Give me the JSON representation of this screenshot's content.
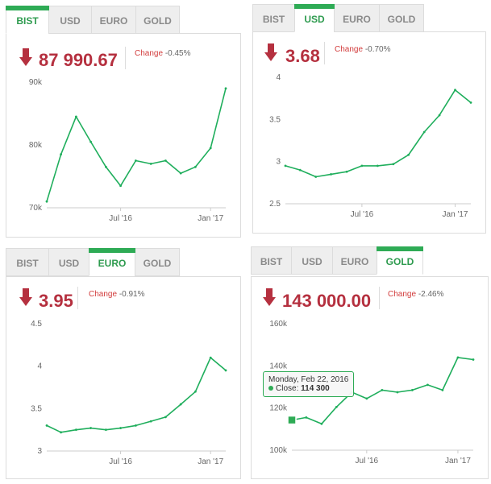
{
  "tabs": [
    "BIST",
    "USD",
    "EURO",
    "GOLD"
  ],
  "colors": {
    "accent": "#2eab55",
    "down": "#b5303f",
    "line": "#1fae5c"
  },
  "change_label": "Change",
  "widgets": [
    {
      "id": "bist",
      "active_tab": 0,
      "price": "87 990.67",
      "change": "-0.45%",
      "chart_data": {
        "type": "line",
        "x": [
          "2016-02",
          "2016-03",
          "2016-04",
          "2016-05",
          "2016-06",
          "2016-07",
          "2016-08",
          "2016-09",
          "2016-10",
          "2016-11",
          "2016-12",
          "2017-01",
          "2017-02"
        ],
        "series": [
          {
            "values": [
              71000,
              78500,
              84500,
              80500,
              76500,
              73500,
              77500,
              77000,
              77500,
              75500,
              76500,
              79500,
              89000
            ]
          }
        ],
        "ylim": [
          70000,
          90000
        ],
        "y_ticks": [
          "70k",
          "80k",
          "90k"
        ],
        "x_ticks": [
          "Jul '16",
          "Jan '17"
        ],
        "tick_positions": [
          "2016-07-01",
          "2017-01-01"
        ]
      }
    },
    {
      "id": "usd",
      "active_tab": 1,
      "price": "3.68",
      "change": "-0.70%",
      "chart_data": {
        "type": "line",
        "x": [
          "2016-02",
          "2016-03",
          "2016-04",
          "2016-05",
          "2016-06",
          "2016-07",
          "2016-08",
          "2016-09",
          "2016-10",
          "2016-11",
          "2016-12",
          "2017-01",
          "2017-02"
        ],
        "series": [
          {
            "values": [
              2.95,
              2.9,
              2.82,
              2.85,
              2.88,
              2.95,
              2.95,
              2.97,
              3.08,
              3.35,
              3.55,
              3.85,
              3.7
            ]
          }
        ],
        "ylim": [
          2.5,
          4.0
        ],
        "y_ticks": [
          "2.5",
          "3",
          "3.5",
          "4"
        ],
        "x_ticks": [
          "Jul '16",
          "Jan '17"
        ],
        "tick_positions": [
          "2016-07-01",
          "2017-01-01"
        ]
      }
    },
    {
      "id": "euro",
      "active_tab": 2,
      "price": "3.95",
      "change": "-0.91%",
      "chart_data": {
        "type": "line",
        "x": [
          "2016-02",
          "2016-03",
          "2016-04",
          "2016-05",
          "2016-06",
          "2016-07",
          "2016-08",
          "2016-09",
          "2016-10",
          "2016-11",
          "2016-12",
          "2017-01",
          "2017-02"
        ],
        "series": [
          {
            "values": [
              3.3,
              3.22,
              3.25,
              3.27,
              3.25,
              3.27,
              3.3,
              3.35,
              3.4,
              3.55,
              3.7,
              4.1,
              3.95
            ]
          }
        ],
        "ylim": [
          3.0,
          4.5
        ],
        "y_ticks": [
          "3",
          "3.5",
          "4",
          "4.5"
        ],
        "x_ticks": [
          "Jul '16",
          "Jan '17"
        ],
        "tick_positions": [
          "2016-07-01",
          "2017-01-01"
        ]
      }
    },
    {
      "id": "gold",
      "active_tab": 3,
      "price": "143 000.00",
      "change": "-2.46%",
      "chart_data": {
        "type": "line",
        "x": [
          "2016-02",
          "2016-03",
          "2016-04",
          "2016-05",
          "2016-06",
          "2016-07",
          "2016-08",
          "2016-09",
          "2016-10",
          "2016-11",
          "2016-12",
          "2017-01",
          "2017-02"
        ],
        "series": [
          {
            "values": [
              114300,
              115500,
              112500,
              120500,
              127500,
              124500,
              128500,
              127500,
              128500,
              131000,
              128500,
              144000,
              143000
            ]
          }
        ],
        "ylim": [
          100000,
          160000
        ],
        "y_ticks": [
          "100k",
          "120k",
          "140k",
          "160k"
        ],
        "x_ticks": [
          "Jul '16",
          "Jan '17"
        ],
        "tick_positions": [
          "2016-07-01",
          "2017-01-01"
        ],
        "tooltip": {
          "date": "Monday, Feb 22, 2016",
          "label": "Close:",
          "value": "114 300"
        }
      }
    }
  ]
}
